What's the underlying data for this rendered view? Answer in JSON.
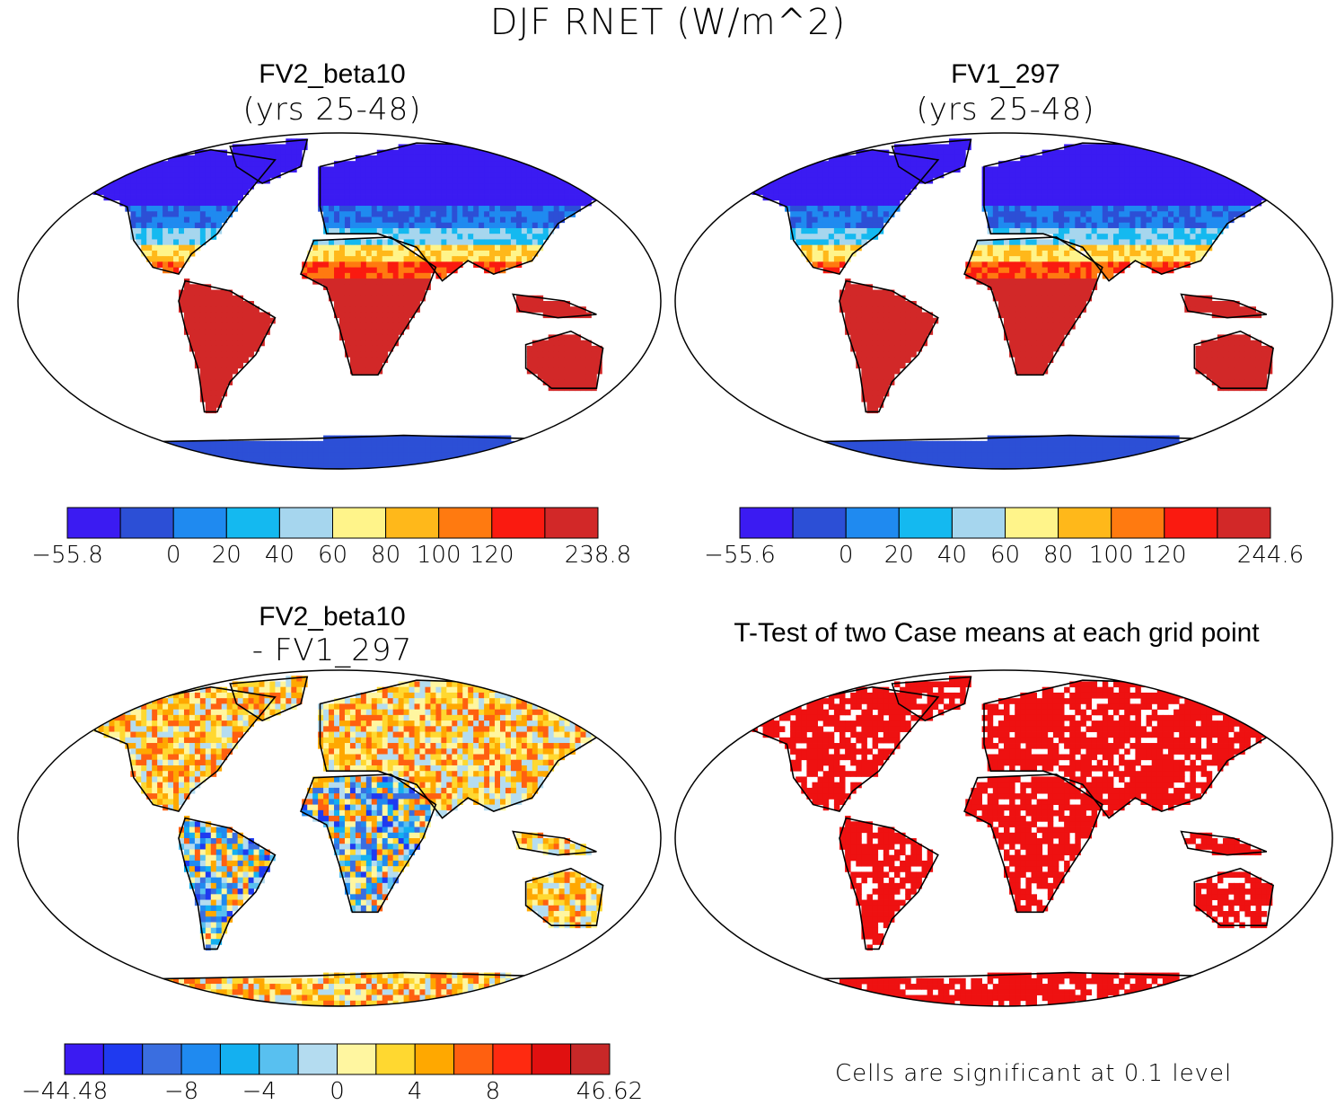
{
  "title": "DJF RNET (W/m^2)",
  "panels": [
    {
      "id": "p1",
      "title": "FV2_beta10",
      "subtitle": "(yrs 25-48)",
      "colorbar": {
        "colors": [
          "#3b1bf2",
          "#2c4fd6",
          "#1f8af0",
          "#14b9f0",
          "#a6d6ee",
          "#fff48a",
          "#ffb81a",
          "#ff7a10",
          "#fa1a10",
          "#d22828"
        ],
        "labels": [
          "-55.8",
          "0",
          "20",
          "40",
          "60",
          "80",
          "100",
          "120",
          "238.8"
        ]
      }
    },
    {
      "id": "p2",
      "title": "FV1_297",
      "subtitle": "(yrs 25-48)",
      "colorbar": {
        "colors": [
          "#3b1bf2",
          "#2c4fd6",
          "#1f8af0",
          "#14b9f0",
          "#a6d6ee",
          "#fff48a",
          "#ffb81a",
          "#ff7a10",
          "#fa1a10",
          "#d22828"
        ],
        "labels": [
          "-55.6",
          "0",
          "20",
          "40",
          "60",
          "80",
          "100",
          "120",
          "244.6"
        ]
      }
    },
    {
      "id": "p3",
      "title": "FV2_beta10",
      "subtitle": "- FV1_297",
      "colorbar": {
        "colors": [
          "#3b1bf2",
          "#1f3af0",
          "#3a6ee0",
          "#1f8af0",
          "#14b0f0",
          "#58c0f0",
          "#b4dcf0",
          "#fff6a0",
          "#ffd830",
          "#ffa800",
          "#ff6010",
          "#ff2a10",
          "#e01010",
          "#c82828"
        ],
        "labels": [
          "-44.48",
          "-8",
          "-4",
          "0",
          "4",
          "8",
          "46.62"
        ]
      }
    },
    {
      "id": "p4",
      "title": "T-Test of two Case means at each grid point",
      "note": "Cells are significant at 0.1 level",
      "fill": "#ee1111"
    }
  ],
  "chart_data": [
    {
      "type": "heatmap",
      "title": "FV2_beta10 (yrs 25-48)",
      "variable": "DJF RNET",
      "units": "W/m^2",
      "min": -55.8,
      "max": 238.8,
      "levels": [
        -55.8,
        -20,
        0,
        20,
        40,
        60,
        80,
        100,
        120,
        180,
        238.8
      ],
      "level_labels": [
        "-55.8",
        "0",
        "20",
        "40",
        "60",
        "80",
        "100",
        "120",
        "238.8"
      ]
    },
    {
      "type": "heatmap",
      "title": "FV1_297 (yrs 25-48)",
      "variable": "DJF RNET",
      "units": "W/m^2",
      "min": -55.6,
      "max": 244.6,
      "levels": [
        -55.6,
        -20,
        0,
        20,
        40,
        60,
        80,
        100,
        120,
        180,
        244.6
      ],
      "level_labels": [
        "-55.6",
        "0",
        "20",
        "40",
        "60",
        "80",
        "100",
        "120",
        "244.6"
      ]
    },
    {
      "type": "heatmap",
      "title": "FV2_beta10 - FV1_297",
      "variable": "DJF RNET difference",
      "units": "W/m^2",
      "min": -44.48,
      "max": 46.62,
      "level_labels": [
        "-44.48",
        "-8",
        "-4",
        "0",
        "4",
        "8",
        "46.62"
      ]
    },
    {
      "type": "heatmap",
      "title": "T-Test of two Case means at each grid point",
      "significance_level": 0.1
    }
  ]
}
